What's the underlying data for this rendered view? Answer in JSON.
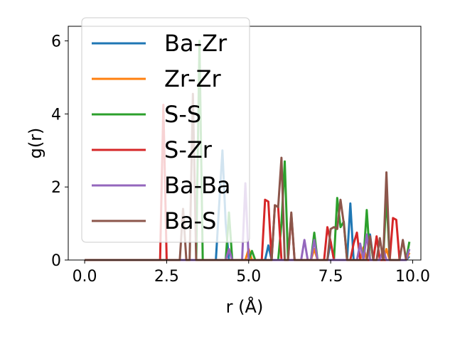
{
  "chart_data": {
    "type": "line",
    "title": "",
    "xlabel": "r (Å)",
    "ylabel": "g(r)",
    "xlim": [
      -0.5,
      10.25
    ],
    "ylim": [
      0,
      6.4
    ],
    "xticks": [
      0.0,
      2.5,
      5.0,
      7.5,
      10.0
    ],
    "xtick_labels": [
      "0.0",
      "2.5",
      "5.0",
      "7.5",
      "10.0"
    ],
    "yticks": [
      0,
      2,
      4,
      6
    ],
    "ytick_labels": [
      "0",
      "2",
      "4",
      "6"
    ],
    "grid": false,
    "legend_position": "upper-left",
    "series": [
      {
        "name": "Ba-Zr",
        "color": "#1f77b4",
        "points": [
          [
            0,
            0
          ],
          [
            4.0,
            0
          ],
          [
            4.1,
            1.5
          ],
          [
            4.2,
            3.0
          ],
          [
            4.3,
            1.0
          ],
          [
            4.4,
            0
          ],
          [
            5.5,
            0
          ],
          [
            5.6,
            0.4
          ],
          [
            5.7,
            0
          ],
          [
            7.4,
            0
          ],
          [
            7.5,
            0.5
          ],
          [
            7.6,
            0
          ],
          [
            8.0,
            0
          ],
          [
            8.1,
            1.55
          ],
          [
            8.2,
            0
          ],
          [
            8.6,
            0
          ],
          [
            8.7,
            0.7
          ],
          [
            8.8,
            0
          ],
          [
            9.8,
            0
          ],
          [
            9.9,
            0.1
          ]
        ]
      },
      {
        "name": "Zr-Zr",
        "color": "#ff7f0e",
        "points": [
          [
            0,
            0
          ],
          [
            4.3,
            0
          ],
          [
            4.4,
            0.3
          ],
          [
            4.5,
            0
          ],
          [
            4.9,
            0
          ],
          [
            5.0,
            0.3
          ],
          [
            5.1,
            0
          ],
          [
            6.9,
            0
          ],
          [
            7.0,
            0.3
          ],
          [
            7.1,
            0
          ],
          [
            8.4,
            0
          ],
          [
            8.5,
            0.35
          ],
          [
            8.6,
            0
          ],
          [
            9.1,
            0
          ],
          [
            9.2,
            0.3
          ],
          [
            9.3,
            0
          ],
          [
            9.8,
            0
          ],
          [
            9.9,
            0.2
          ]
        ]
      },
      {
        "name": "S-S",
        "color": "#2ca02c",
        "points": [
          [
            0,
            0
          ],
          [
            3.4,
            0
          ],
          [
            3.5,
            6.0
          ],
          [
            3.6,
            0
          ],
          [
            4.3,
            0
          ],
          [
            4.4,
            1.3
          ],
          [
            4.5,
            0
          ],
          [
            5.0,
            0
          ],
          [
            5.1,
            0.25
          ],
          [
            5.2,
            0
          ],
          [
            5.9,
            0
          ],
          [
            6.0,
            1.0
          ],
          [
            6.1,
            2.7
          ],
          [
            6.2,
            0
          ],
          [
            6.9,
            0
          ],
          [
            7.0,
            0.75
          ],
          [
            7.1,
            0
          ],
          [
            7.6,
            0
          ],
          [
            7.7,
            1.7
          ],
          [
            7.8,
            0.9
          ],
          [
            7.9,
            1.05
          ],
          [
            8.0,
            0
          ],
          [
            8.5,
            0
          ],
          [
            8.6,
            1.37
          ],
          [
            8.7,
            0
          ],
          [
            9.1,
            0
          ],
          [
            9.2,
            1.75
          ],
          [
            9.3,
            0
          ],
          [
            9.8,
            0
          ],
          [
            9.9,
            0.5
          ]
        ]
      },
      {
        "name": "S-Zr",
        "color": "#d62728",
        "points": [
          [
            0,
            0
          ],
          [
            2.3,
            0
          ],
          [
            2.4,
            4.25
          ],
          [
            2.5,
            0
          ],
          [
            5.4,
            0
          ],
          [
            5.5,
            1.65
          ],
          [
            5.6,
            1.6
          ],
          [
            5.7,
            0
          ],
          [
            5.8,
            1.5
          ],
          [
            5.9,
            1.45
          ],
          [
            6.0,
            0
          ],
          [
            6.2,
            0
          ],
          [
            6.3,
            1.25
          ],
          [
            6.4,
            0
          ],
          [
            7.3,
            0
          ],
          [
            7.4,
            0.9
          ],
          [
            7.5,
            0.5
          ],
          [
            7.6,
            0
          ],
          [
            8.1,
            0
          ],
          [
            8.2,
            0.45
          ],
          [
            8.3,
            0.75
          ],
          [
            8.4,
            0
          ],
          [
            8.8,
            0
          ],
          [
            8.9,
            0.65
          ],
          [
            9.0,
            0
          ],
          [
            9.3,
            0
          ],
          [
            9.4,
            1.15
          ],
          [
            9.5,
            1.1
          ],
          [
            9.6,
            0
          ]
        ]
      },
      {
        "name": "Ba-Ba",
        "color": "#9467bd",
        "points": [
          [
            0,
            0
          ],
          [
            4.3,
            0
          ],
          [
            4.4,
            0.3
          ],
          [
            4.5,
            0
          ],
          [
            4.8,
            0
          ],
          [
            4.9,
            2.1
          ],
          [
            5.0,
            0
          ],
          [
            6.6,
            0
          ],
          [
            6.7,
            0.55
          ],
          [
            6.8,
            0
          ],
          [
            6.9,
            0
          ],
          [
            7.0,
            0.55
          ],
          [
            7.1,
            0
          ],
          [
            8.3,
            0
          ],
          [
            8.4,
            0.45
          ],
          [
            8.5,
            0
          ],
          [
            8.6,
            0.7
          ],
          [
            8.7,
            0
          ],
          [
            9.0,
            0
          ],
          [
            9.1,
            0.3
          ],
          [
            9.2,
            0
          ],
          [
            9.8,
            0
          ],
          [
            9.9,
            0.3
          ]
        ]
      },
      {
        "name": "Ba-S",
        "color": "#8c564b",
        "points": [
          [
            0,
            0
          ],
          [
            2.9,
            0
          ],
          [
            3.0,
            1.4
          ],
          [
            3.1,
            0
          ],
          [
            3.2,
            0
          ],
          [
            3.3,
            4.55
          ],
          [
            3.4,
            0
          ],
          [
            5.7,
            0
          ],
          [
            5.8,
            1.5
          ],
          [
            5.9,
            1.45
          ],
          [
            6.0,
            2.8
          ],
          [
            6.1,
            0
          ],
          [
            6.2,
            0
          ],
          [
            6.3,
            1.3
          ],
          [
            6.4,
            0
          ],
          [
            7.4,
            0
          ],
          [
            7.5,
            0.85
          ],
          [
            7.6,
            0.9
          ],
          [
            7.7,
            0.85
          ],
          [
            7.8,
            1.65
          ],
          [
            7.9,
            1.0
          ],
          [
            8.0,
            0
          ],
          [
            8.6,
            0
          ],
          [
            8.7,
            0.65
          ],
          [
            8.8,
            0
          ],
          [
            8.9,
            0
          ],
          [
            9.0,
            0.6
          ],
          [
            9.1,
            0
          ],
          [
            9.2,
            2.4
          ],
          [
            9.3,
            0
          ],
          [
            9.6,
            0
          ],
          [
            9.7,
            0.55
          ],
          [
            9.8,
            0
          ]
        ]
      }
    ]
  }
}
